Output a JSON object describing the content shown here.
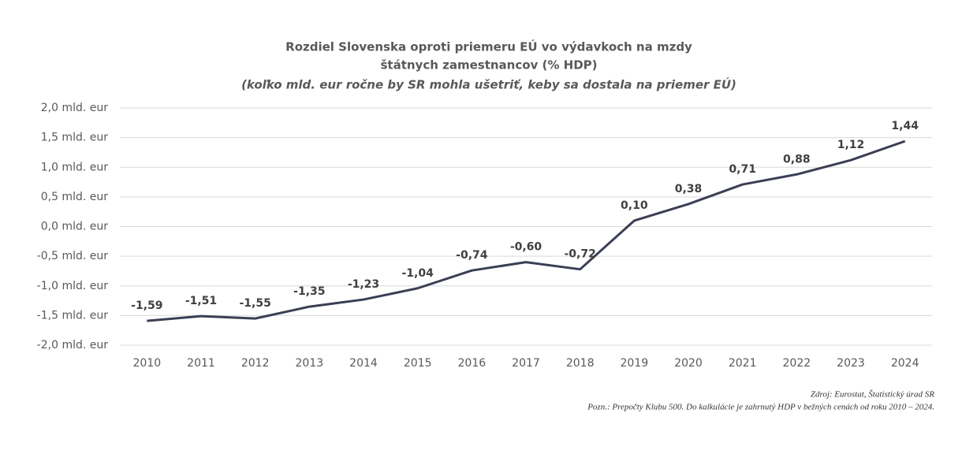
{
  "chart_data": {
    "type": "line",
    "title": [
      "Rozdiel Slovenska oproti priemeru EÚ vo výdavkoch na mzdy",
      "štátnych zamestnancov (% HDP)"
    ],
    "subtitle": "(koľko mld. eur ročne by SR mohla ušetriť, keby sa dostala na priemer EÚ)",
    "categories": [
      "2010",
      "2011",
      "2012",
      "2013",
      "2014",
      "2015",
      "2016",
      "2017",
      "2018",
      "2019",
      "2020",
      "2021",
      "2022",
      "2023",
      "2024"
    ],
    "series": [
      {
        "name": "Rozdiel",
        "color": "#3b3f54",
        "values": [
          -1.59,
          -1.51,
          -1.55,
          -1.35,
          -1.23,
          -1.04,
          -0.74,
          -0.6,
          -0.72,
          0.1,
          0.38,
          0.71,
          0.88,
          1.12,
          1.44
        ],
        "value_labels": [
          "-1,59",
          "-1,51",
          "-1,55",
          "-1,35",
          "-1,23",
          "-1,04",
          "-0,74",
          "-0,60",
          "-0,72",
          "0,10",
          "0,38",
          "0,71",
          "0,88",
          "1,12",
          "1,44"
        ]
      }
    ],
    "ylim": [
      -2,
      2
    ],
    "yticks": [
      {
        "value": 2,
        "label": "2,0 mld. eur"
      },
      {
        "value": 1.5,
        "label": "1,5 mld. eur"
      },
      {
        "value": 1,
        "label": "1,0 mld. eur"
      },
      {
        "value": 0.5,
        "label": "0,5 mld. eur"
      },
      {
        "value": 0,
        "label": "0,0 mld. eur"
      },
      {
        "value": -0.5,
        "label": "-0,5 mld. eur"
      },
      {
        "value": -1,
        "label": "-1,0 mld. eur"
      },
      {
        "value": -1.5,
        "label": "-1,5 mld. eur"
      },
      {
        "value": -2,
        "label": "-2,0 mld. eur"
      }
    ],
    "grid": true,
    "notes": [
      "Zdroj: Eurostat, Štatistický úrad SR",
      "Pozn.: Prepočty Klubu 500. Do kalkulácie je zahrnutý HDP v bežných cenách od roku 2010 – 2024."
    ]
  }
}
